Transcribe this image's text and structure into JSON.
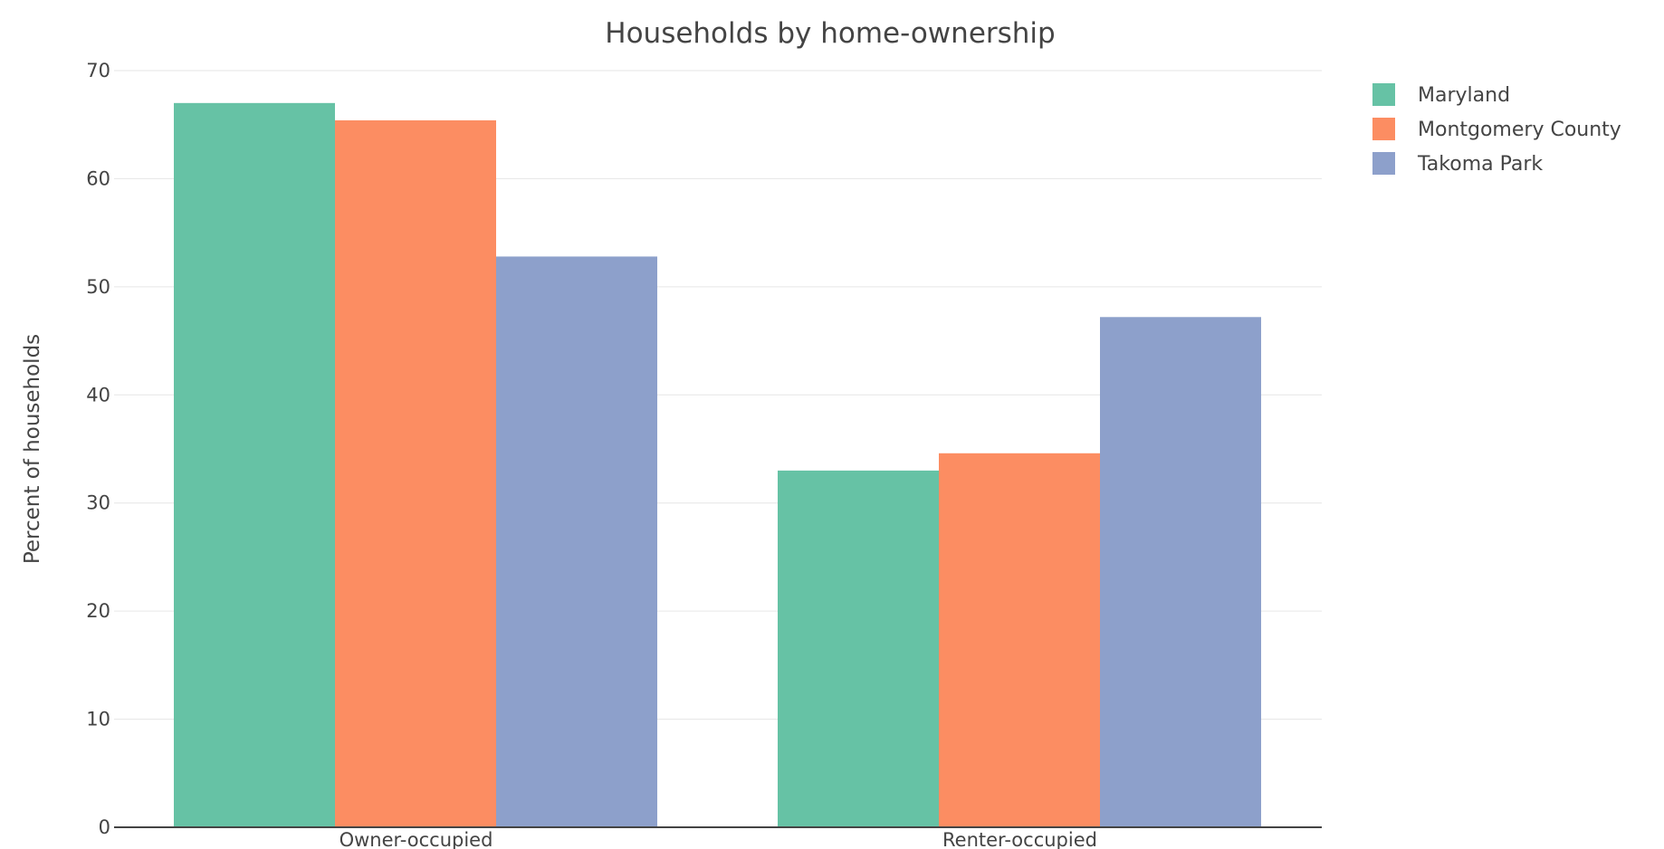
{
  "chart_data": {
    "type": "bar",
    "title": "Households by home-ownership",
    "xlabel": "",
    "ylabel": "Percent of households",
    "categories": [
      "Owner-occupied",
      "Renter-occupied"
    ],
    "series": [
      {
        "name": "Maryland",
        "color": "#66c2a5",
        "values": [
          67.0,
          33.0
        ]
      },
      {
        "name": "Montgomery County",
        "color": "#fc8d62",
        "values": [
          65.4,
          34.6
        ]
      },
      {
        "name": "Takoma Park",
        "color": "#8da0cb",
        "values": [
          52.8,
          47.2
        ]
      }
    ],
    "ylim": [
      0,
      70
    ],
    "yticks": [
      0,
      10,
      20,
      30,
      40,
      50,
      60,
      70
    ],
    "grid": true,
    "legend_position": "top-right"
  }
}
